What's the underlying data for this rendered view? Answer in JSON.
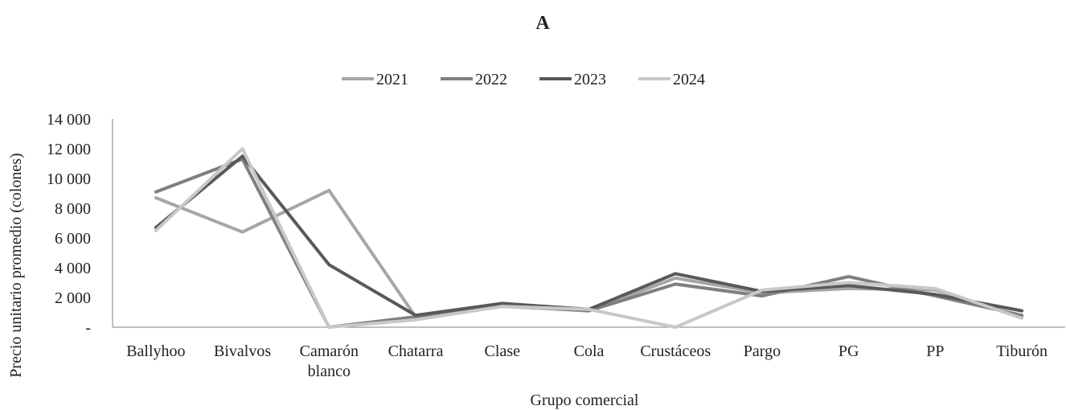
{
  "chart_data": {
    "type": "line",
    "title": "A",
    "xlabel": "Grupo comercial",
    "ylabel": "Precio unitario promedio (colones)",
    "ylim": [
      0,
      14000
    ],
    "yticks": [
      0,
      2000,
      4000,
      6000,
      8000,
      10000,
      12000,
      14000
    ],
    "ytick_labels": [
      "-",
      "2 000",
      "4 000",
      "6 000",
      "8 000",
      "10 000",
      "12 000",
      "14 000"
    ],
    "categories": [
      "Ballyhoo",
      "Bivalvos",
      "Camarón blanco",
      "Chatarra",
      "Clase",
      "Cola",
      "Crustáceos",
      "Pargo",
      "PG",
      "PP",
      "Tiburón"
    ],
    "category_lines": [
      [
        "Ballyhoo"
      ],
      [
        "Bivalvos"
      ],
      [
        "Camarón",
        "blanco"
      ],
      [
        "Chatarra"
      ],
      [
        "Clase"
      ],
      [
        "Cola"
      ],
      [
        "Crustáceos"
      ],
      [
        "Pargo"
      ],
      [
        "PG"
      ],
      [
        "PP"
      ],
      [
        "Tiburón"
      ]
    ],
    "legend_position": "top",
    "grid": false,
    "series": [
      {
        "name": "2021",
        "color": "#a6a6a6",
        "values": [
          8700,
          6400,
          9200,
          700,
          1400,
          1100,
          3300,
          2300,
          2600,
          2500,
          700
        ]
      },
      {
        "name": "2022",
        "color": "#7f7f7f",
        "values": [
          9100,
          11300,
          0,
          700,
          1500,
          1100,
          2900,
          2100,
          3400,
          2100,
          800
        ]
      },
      {
        "name": "2023",
        "color": "#595959",
        "values": [
          6700,
          11500,
          4200,
          800,
          1600,
          1200,
          3600,
          2400,
          2800,
          2200,
          1100
        ]
      },
      {
        "name": "2024",
        "color": "#c8c8c8",
        "values": [
          6500,
          12000,
          0,
          500,
          1400,
          1200,
          0,
          2500,
          3000,
          2600,
          600
        ]
      }
    ]
  }
}
